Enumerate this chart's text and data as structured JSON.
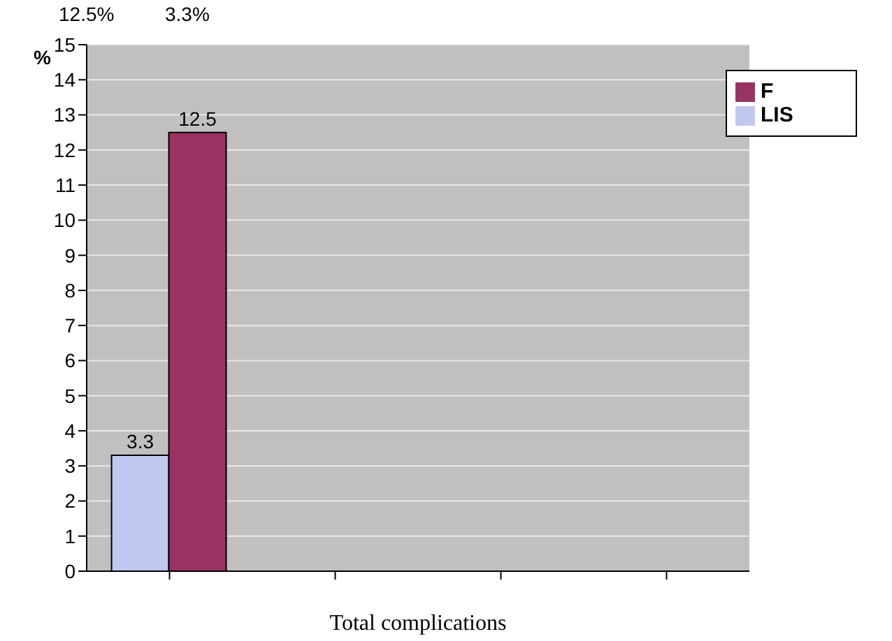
{
  "chart_data": {
    "type": "bar",
    "xlabel": "Total complications",
    "ylabel": "%",
    "categories": [
      null,
      null,
      null,
      null
    ],
    "series": [
      {
        "name": "LIS",
        "color": "#c0c8f0",
        "values": [
          3.3,
          null,
          null,
          null
        ]
      },
      {
        "name": "F",
        "color": "#993366",
        "values": [
          12.5,
          null,
          null,
          null
        ]
      }
    ],
    "ylim": [
      0,
      15
    ],
    "yticks": [
      0,
      1,
      2,
      3,
      4,
      5,
      6,
      7,
      8,
      9,
      10,
      11,
      12,
      13,
      14,
      15
    ],
    "grid": "y",
    "legend": "top right",
    "data_labels": true,
    "annotations": [
      "12.5%",
      "3.3%"
    ]
  }
}
